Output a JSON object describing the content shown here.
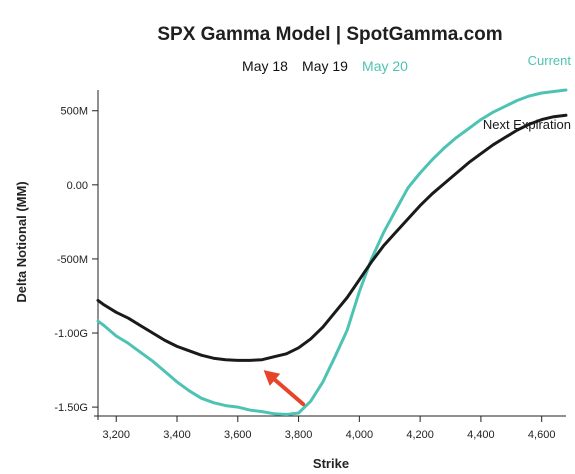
{
  "chart_data": {
    "type": "line",
    "title": "SPX Gamma Model | SpotGamma.com",
    "legend_dates": [
      {
        "label": "May 18",
        "color": "#111111"
      },
      {
        "label": "May 19",
        "color": "#111111"
      },
      {
        "label": "May 20",
        "color": "#4ec3b3"
      }
    ],
    "xlabel": "Strike",
    "ylabel": "Delta Notional (MM)",
    "xlim": [
      3140,
      4680
    ],
    "ylim": [
      -1560,
      640
    ],
    "x_ticks": [
      3200,
      3400,
      3600,
      3800,
      4000,
      4200,
      4400,
      4600
    ],
    "x_tick_labels": [
      "3,200",
      "3,400",
      "3,600",
      "3,800",
      "4,000",
      "4,200",
      "4,400",
      "4,600"
    ],
    "y_ticks": [
      -1500,
      -1000,
      -500,
      0,
      500
    ],
    "y_tick_labels": [
      "-1.50G",
      "-1.00G",
      "-500M",
      "0.00",
      "500M"
    ],
    "series": [
      {
        "name": "Current",
        "color": "#4ec3b3",
        "x": [
          3140,
          3160,
          3200,
          3240,
          3280,
          3320,
          3360,
          3400,
          3440,
          3480,
          3520,
          3560,
          3600,
          3640,
          3680,
          3720,
          3760,
          3800,
          3840,
          3880,
          3920,
          3960,
          4000,
          4040,
          4080,
          4120,
          4160,
          4200,
          4240,
          4280,
          4320,
          4360,
          4400,
          4440,
          4480,
          4520,
          4560,
          4600,
          4640,
          4680
        ],
        "y": [
          -920,
          -950,
          -1020,
          -1070,
          -1130,
          -1190,
          -1260,
          -1330,
          -1390,
          -1440,
          -1470,
          -1490,
          -1500,
          -1520,
          -1530,
          -1545,
          -1550,
          -1540,
          -1460,
          -1330,
          -1160,
          -980,
          -720,
          -500,
          -320,
          -170,
          -20,
          80,
          170,
          250,
          320,
          380,
          440,
          490,
          530,
          570,
          600,
          620,
          630,
          640
        ]
      },
      {
        "name": "Next Expiration",
        "color": "#1a1a1a",
        "x": [
          3140,
          3160,
          3200,
          3240,
          3280,
          3320,
          3360,
          3400,
          3440,
          3480,
          3520,
          3560,
          3600,
          3640,
          3680,
          3720,
          3760,
          3800,
          3840,
          3880,
          3920,
          3960,
          4000,
          4040,
          4080,
          4120,
          4160,
          4200,
          4240,
          4280,
          4320,
          4360,
          4400,
          4440,
          4480,
          4520,
          4560,
          4600,
          4640,
          4680
        ],
        "y": [
          -780,
          -810,
          -860,
          -900,
          -950,
          -1000,
          -1050,
          -1090,
          -1120,
          -1150,
          -1170,
          -1180,
          -1185,
          -1185,
          -1180,
          -1160,
          -1140,
          -1100,
          -1040,
          -960,
          -860,
          -760,
          -640,
          -520,
          -410,
          -320,
          -230,
          -140,
          -60,
          10,
          80,
          150,
          210,
          270,
          320,
          370,
          410,
          440,
          460,
          470
        ]
      }
    ],
    "annotation": {
      "type": "arrow",
      "color": "#e8442a",
      "from": [
        3815,
        -1480
      ],
      "to": [
        3685,
        -1250
      ]
    },
    "grid": false
  }
}
